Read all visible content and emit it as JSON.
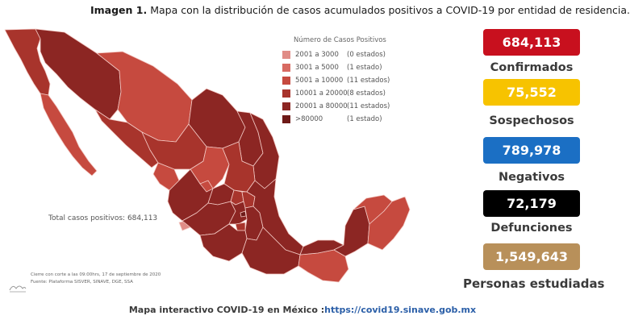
{
  "header": {
    "bold": "Imagen 1.",
    "text": " Mapa con la distribución de casos acumulados positivos a COVID-19 por entidad de residencia."
  },
  "legend": {
    "title": "Número de Casos Positivos",
    "items": [
      {
        "range": "2001 a   3000",
        "count": "(0 estados)",
        "color": "#e08c86"
      },
      {
        "range": "3001 a   5000",
        "count": "(1 estado)",
        "color": "#d86a62"
      },
      {
        "range": "5001 a  10000",
        "count": "(11 estados)",
        "color": "#c64a3f"
      },
      {
        "range": "10001 a  20000",
        "count": "(8 estados)",
        "color": "#a8342c"
      },
      {
        "range": "20001 a  80000",
        "count": "(11 estados)",
        "color": "#8c2623"
      },
      {
        "range": ">80000",
        "count": "(1 estado)",
        "color": "#6e1a18"
      }
    ]
  },
  "map": {
    "total_label": "Total casos positivos: 684,113",
    "cutoff_note": "Cierre con corte a las 09:00hrs, 17 de septiembre de 2020",
    "source_note": "Fuente: Plataforma SISVER, SINAVE, DGE, SSA"
  },
  "stats": {
    "confirmados": {
      "value": "684,113",
      "label": "Confirmados",
      "color": "#c8101e",
      "text_color": "#ffffff"
    },
    "sospechosos": {
      "value": "75,552",
      "label": "Sospechosos",
      "color": "#f7c300",
      "text_color": "#ffffff"
    },
    "negativos": {
      "value": "789,978",
      "label": "Negativos",
      "color": "#1b6fc4",
      "text_color": "#ffffff"
    },
    "defunciones": {
      "value": "72,179",
      "label": "Defunciones",
      "color": "#000000",
      "text_color": "#ffffff"
    },
    "estudiadas": {
      "value": "1,549,643",
      "label": "Personas estudiadas",
      "color": "#b8905a",
      "text_color": "#ffffff"
    }
  },
  "footer": {
    "text": "Mapa interactivo COVID-19 en México :",
    "link": "https://covid19.sinave.gob.mx"
  }
}
